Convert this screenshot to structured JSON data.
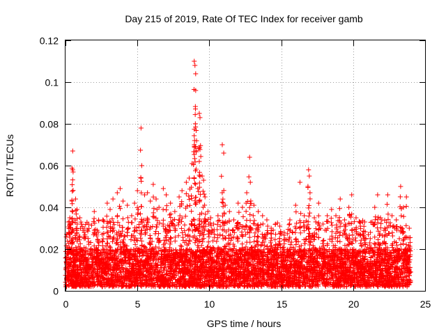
{
  "chart_data": {
    "type": "scatter",
    "title": "Day 215 of 2019, Rate Of TEC Index for receiver gamb",
    "xlabel": "GPS time / hours",
    "ylabel": "ROTI / TECUs",
    "xlim": [
      0,
      25
    ],
    "ylim": [
      0,
      0.12
    ],
    "xticks": [
      0,
      5,
      10,
      15,
      20,
      25
    ],
    "yticks": [
      0,
      0.02,
      0.04,
      0.06,
      0.08,
      0.1,
      0.12
    ],
    "ytick_labels": [
      "0",
      "0.02",
      "0.04",
      "0.06",
      "0.08",
      "0.1",
      "0.12"
    ],
    "xtick_labels": [
      "0",
      "5",
      "10",
      "15",
      "20",
      "25"
    ],
    "grid": true,
    "marker": "+",
    "color": "#ff0000",
    "data_range_hours": [
      0,
      24
    ],
    "background_band_ticss": [
      0.002,
      0.02
    ],
    "series": [
      {
        "name": "ROTI",
        "points": [
          [
            0.1,
            0.027
          ],
          [
            0.2,
            0.033
          ],
          [
            0.3,
            0.035
          ],
          [
            0.45,
            0.043
          ],
          [
            0.5,
            0.067
          ],
          [
            0.5,
            0.058
          ],
          [
            0.7,
            0.044
          ],
          [
            0.8,
            0.039
          ],
          [
            1.0,
            0.035
          ],
          [
            1.3,
            0.03
          ],
          [
            1.6,
            0.032
          ],
          [
            2.0,
            0.038
          ],
          [
            2.2,
            0.029
          ],
          [
            2.6,
            0.034
          ],
          [
            2.9,
            0.042
          ],
          [
            3.1,
            0.039
          ],
          [
            3.3,
            0.044
          ],
          [
            3.6,
            0.047
          ],
          [
            3.8,
            0.049
          ],
          [
            4.0,
            0.043
          ],
          [
            4.3,
            0.041
          ],
          [
            4.6,
            0.036
          ],
          [
            4.8,
            0.042
          ],
          [
            5.0,
            0.048
          ],
          [
            5.25,
            0.078
          ],
          [
            5.3,
            0.06
          ],
          [
            5.5,
            0.046
          ],
          [
            5.7,
            0.047
          ],
          [
            5.9,
            0.043
          ],
          [
            6.1,
            0.051
          ],
          [
            6.3,
            0.044
          ],
          [
            6.5,
            0.04
          ],
          [
            6.8,
            0.049
          ],
          [
            7.0,
            0.046
          ],
          [
            7.3,
            0.042
          ],
          [
            7.6,
            0.038
          ],
          [
            7.9,
            0.045
          ],
          [
            8.1,
            0.048
          ],
          [
            8.4,
            0.052
          ],
          [
            8.6,
            0.054
          ],
          [
            8.8,
            0.061
          ],
          [
            8.95,
            0.11
          ],
          [
            9.0,
            0.108
          ],
          [
            9.05,
            0.104
          ],
          [
            9.05,
            0.096
          ],
          [
            9.3,
            0.085
          ],
          [
            9.35,
            0.083
          ],
          [
            9.3,
            0.062
          ],
          [
            9.5,
            0.055
          ],
          [
            9.6,
            0.053
          ],
          [
            9.2,
            0.049
          ],
          [
            9.7,
            0.045
          ],
          [
            9.9,
            0.038
          ],
          [
            10.1,
            0.035
          ],
          [
            10.3,
            0.032
          ],
          [
            10.6,
            0.036
          ],
          [
            10.9,
            0.07
          ],
          [
            11.0,
            0.066
          ],
          [
            11.1,
            0.041
          ],
          [
            11.4,
            0.038
          ],
          [
            11.7,
            0.034
          ],
          [
            12.0,
            0.042
          ],
          [
            12.3,
            0.04
          ],
          [
            12.6,
            0.047
          ],
          [
            12.8,
            0.064
          ],
          [
            12.85,
            0.052
          ],
          [
            13.1,
            0.041
          ],
          [
            13.4,
            0.038
          ],
          [
            13.7,
            0.036
          ],
          [
            14.0,
            0.034
          ],
          [
            14.3,
            0.03
          ],
          [
            14.6,
            0.032
          ],
          [
            14.9,
            0.031
          ],
          [
            15.2,
            0.028
          ],
          [
            15.6,
            0.034
          ],
          [
            16.0,
            0.041
          ],
          [
            16.3,
            0.052
          ],
          [
            16.6,
            0.036
          ],
          [
            16.9,
            0.058
          ],
          [
            16.95,
            0.055
          ],
          [
            17.0,
            0.047
          ],
          [
            17.3,
            0.035
          ],
          [
            17.6,
            0.042
          ],
          [
            17.9,
            0.032
          ],
          [
            18.2,
            0.036
          ],
          [
            18.5,
            0.039
          ],
          [
            18.8,
            0.036
          ],
          [
            19.1,
            0.044
          ],
          [
            19.4,
            0.034
          ],
          [
            19.7,
            0.04
          ],
          [
            19.9,
            0.046
          ],
          [
            20.2,
            0.035
          ],
          [
            20.5,
            0.031
          ],
          [
            20.8,
            0.033
          ],
          [
            21.2,
            0.028
          ],
          [
            21.5,
            0.04
          ],
          [
            21.7,
            0.046
          ],
          [
            21.9,
            0.035
          ],
          [
            22.2,
            0.03
          ],
          [
            22.4,
            0.046
          ],
          [
            22.7,
            0.036
          ],
          [
            23.0,
            0.034
          ],
          [
            23.3,
            0.05
          ],
          [
            23.5,
            0.04
          ],
          [
            23.7,
            0.045
          ],
          [
            23.9,
            0.03
          ]
        ]
      }
    ]
  }
}
